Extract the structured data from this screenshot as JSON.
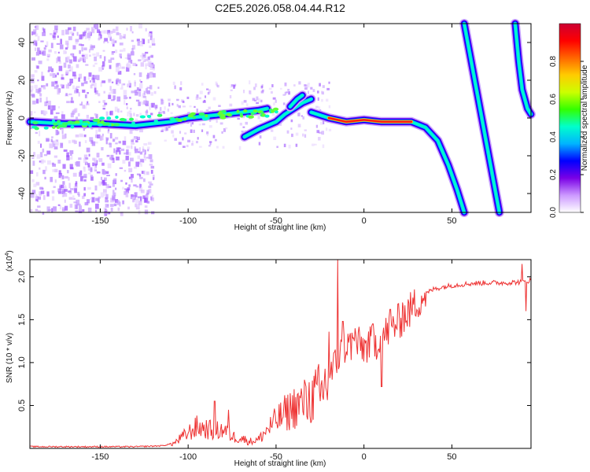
{
  "title": "C2E5.2026.058.04.44.R12",
  "chart_data": [
    {
      "type": "heatmap",
      "name": "spectrogram",
      "xlabel": "Height of straight line (km)",
      "ylabel": "Frequency (Hz)",
      "xlim": [
        -190,
        95
      ],
      "ylim": [
        -50,
        50
      ],
      "xticks": [
        -150,
        -100,
        -50,
        0,
        50
      ],
      "yticks": [
        -40,
        -20,
        0,
        20,
        40
      ],
      "colorbar": {
        "label": "Normalized spectral amplitude",
        "range": [
          0,
          1
        ],
        "ticks": [
          "0.0",
          "0.2",
          "0.4",
          "0.6",
          "0.8"
        ],
        "tick_values": [
          0,
          0.2,
          0.4,
          0.6,
          0.8
        ],
        "colors": [
          "#ffffff",
          "#cc99ff",
          "#7a00e6",
          "#0000ff",
          "#00b4ff",
          "#00ffcc",
          "#33ff00",
          "#ccff00",
          "#ffcc00",
          "#ff6600",
          "#ff0000",
          "#cc0033"
        ]
      },
      "traces": [
        {
          "name": "main carrier line",
          "points": [
            [
              -190,
              -2
            ],
            [
              -170,
              -3
            ],
            [
              -150,
              -3
            ],
            [
              -130,
              -4
            ],
            [
              -120,
              -3
            ],
            [
              -110,
              -2
            ],
            [
              -100,
              0
            ],
            [
              -90,
              1
            ],
            [
              -80,
              2
            ],
            [
              -70,
              3
            ],
            [
              -60,
              4
            ],
            [
              -55,
              5
            ]
          ]
        },
        {
          "name": "lower branch",
          "points": [
            [
              -68,
              -10
            ],
            [
              -60,
              -6
            ],
            [
              -50,
              -2
            ],
            [
              -45,
              2
            ],
            [
              -40,
              5
            ],
            [
              -35,
              8
            ],
            [
              -30,
              10
            ]
          ]
        },
        {
          "name": "upper branch",
          "points": [
            [
              -42,
              6
            ],
            [
              -38,
              10
            ],
            [
              -35,
              12
            ]
          ]
        },
        {
          "name": "continuation",
          "points": [
            [
              -30,
              3
            ],
            [
              -20,
              0
            ],
            [
              -10,
              -2
            ],
            [
              0,
              -1
            ],
            [
              10,
              -2
            ],
            [
              20,
              -2
            ],
            [
              27,
              -2
            ],
            [
              35,
              -5
            ],
            [
              42,
              -12
            ],
            [
              48,
              -25
            ],
            [
              53,
              -38
            ],
            [
              57,
              -50
            ]
          ]
        },
        {
          "name": "steep line A",
          "points": [
            [
              57,
              50
            ],
            [
              63,
              20
            ],
            [
              69,
              -10
            ],
            [
              75,
              -40
            ],
            [
              77,
              -50
            ]
          ]
        },
        {
          "name": "steep line B",
          "points": [
            [
              86,
              50
            ],
            [
              88,
              30
            ],
            [
              90,
              15
            ],
            [
              93,
              5
            ],
            [
              95,
              2
            ]
          ]
        }
      ]
    },
    {
      "type": "line",
      "name": "snr",
      "xlabel": "Height of straight line (km)",
      "ylabel": "SNR (10 * v/v)",
      "scale_label": "(x10",
      "scale_exp": "4",
      "scale_close": ")",
      "xlim": [
        -190,
        95
      ],
      "ylim": [
        0,
        2.2
      ],
      "xticks": [
        -150,
        -100,
        -50,
        0,
        50
      ],
      "yticks": [
        "0.5",
        "1.0",
        "1.5",
        "2.0"
      ],
      "ytick_values": [
        0.5,
        1.0,
        1.5,
        2.0
      ],
      "color": "#ee3333",
      "x": [
        -190,
        -160,
        -130,
        -115,
        -108,
        -100,
        -95,
        -90,
        -85,
        -80,
        -75,
        -70,
        -65,
        -60,
        -55,
        -50,
        -45,
        -40,
        -35,
        -30,
        -25,
        -20,
        -15,
        -10,
        -5,
        0,
        5,
        10,
        15,
        20,
        25,
        30,
        35,
        40,
        50,
        60,
        70,
        80,
        90,
        95
      ],
      "values": [
        0.02,
        0.02,
        0.02,
        0.03,
        0.06,
        0.18,
        0.25,
        0.23,
        0.2,
        0.22,
        0.14,
        0.12,
        0.08,
        0.1,
        0.22,
        0.32,
        0.4,
        0.48,
        0.52,
        0.58,
        0.66,
        0.8,
        1.05,
        1.2,
        1.22,
        1.18,
        1.22,
        1.28,
        1.4,
        1.48,
        1.58,
        1.7,
        1.8,
        1.86,
        1.9,
        1.92,
        1.93,
        1.93,
        1.94,
        1.96
      ],
      "spikes": [
        [
          -85,
          0.55
        ],
        [
          -77,
          0.45
        ],
        [
          -45,
          0.62
        ],
        [
          -33,
          0.72
        ],
        [
          -25,
          0.55
        ],
        [
          -20,
          1.36
        ],
        [
          -15,
          2.25
        ],
        [
          -12,
          1.48
        ],
        [
          -5,
          1.4
        ],
        [
          5,
          1.45
        ],
        [
          10,
          0.72
        ],
        [
          15,
          1.62
        ],
        [
          22,
          1.7
        ],
        [
          90,
          2.15
        ],
        [
          92,
          1.6
        ]
      ]
    }
  ]
}
